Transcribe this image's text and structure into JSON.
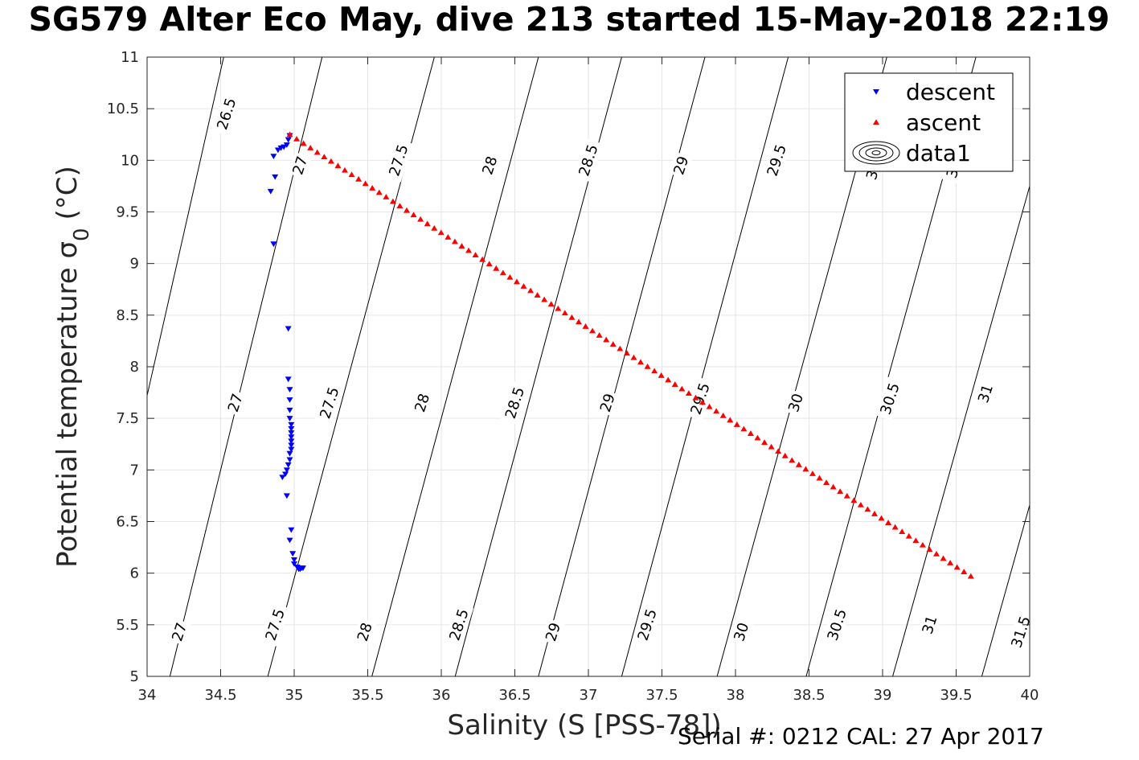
{
  "title": "SG579 Alter Eco May, dive 213 started 15-May-2018 22:19",
  "footer": "Serial #: 0212  CAL: 27 Apr 2017",
  "chart_data": {
    "type": "scatter",
    "xlabel": "Salinity (S [PSS-78])",
    "ylabel": "Potential temperature σ",
    "ylabel_subscript": "0",
    "ylabel_unit": "(°C)",
    "xlim": [
      34,
      40
    ],
    "ylim": [
      5,
      11
    ],
    "xticks": [
      "34",
      "34.5",
      "35",
      "35.5",
      "36",
      "36.5",
      "37",
      "37.5",
      "38",
      "38.5",
      "39",
      "39.5",
      "40"
    ],
    "yticks": [
      "5",
      "5.5",
      "6",
      "6.5",
      "7",
      "7.5",
      "8",
      "8.5",
      "9",
      "9.5",
      "10",
      "10.5",
      "11"
    ],
    "grid": true,
    "legend_position": "top-right",
    "series": [
      {
        "name": "descent",
        "color": "#0000ff",
        "marker": "triangle-down",
        "points": [
          [
            34.97,
            10.24
          ],
          [
            34.96,
            10.2
          ],
          [
            34.95,
            10.15
          ],
          [
            34.93,
            10.13
          ],
          [
            34.91,
            10.12
          ],
          [
            34.89,
            10.1
          ],
          [
            34.86,
            10.04
          ],
          [
            34.87,
            9.84
          ],
          [
            34.84,
            9.7
          ],
          [
            34.86,
            9.19
          ],
          [
            34.96,
            8.37
          ],
          [
            34.96,
            7.88
          ],
          [
            34.97,
            7.78
          ],
          [
            34.97,
            7.68
          ],
          [
            34.97,
            7.58
          ],
          [
            34.97,
            7.5
          ],
          [
            34.98,
            7.44
          ],
          [
            34.98,
            7.4
          ],
          [
            34.98,
            7.36
          ],
          [
            34.98,
            7.32
          ],
          [
            34.98,
            7.28
          ],
          [
            34.98,
            7.24
          ],
          [
            34.98,
            7.2
          ],
          [
            34.97,
            7.16
          ],
          [
            34.97,
            7.1
          ],
          [
            34.96,
            7.05
          ],
          [
            34.95,
            7.0
          ],
          [
            34.94,
            6.96
          ],
          [
            34.92,
            6.93
          ],
          [
            34.95,
            6.75
          ],
          [
            34.98,
            6.42
          ],
          [
            34.97,
            6.32
          ],
          [
            34.99,
            6.19
          ],
          [
            35.0,
            6.13
          ],
          [
            35.0,
            6.09
          ],
          [
            35.02,
            6.06
          ],
          [
            35.03,
            6.04
          ],
          [
            35.04,
            6.04
          ],
          [
            35.05,
            6.05
          ],
          [
            35.06,
            6.05
          ]
        ]
      },
      {
        "name": "ascent",
        "color": "#ff0000",
        "marker": "triangle-up",
        "start": [
          34.97,
          10.25
        ],
        "end": [
          39.6,
          5.97
        ],
        "count": 100
      }
    ],
    "legend_entries": [
      "descent",
      "ascent",
      "data1"
    ],
    "contours": [
      {
        "value": "26.5",
        "S0": 34.0,
        "T0": 7.72,
        "slope": 6.3
      },
      {
        "value": "27",
        "S0": 34.0,
        "T0": 4.1,
        "slope": 5.8
      },
      {
        "value": "27.5",
        "S0": 34.0,
        "T0": 0.65,
        "slope": 5.3
      },
      {
        "value": "28",
        "S0": 35.0,
        "T0": 2.2,
        "slope": 5.3
      },
      {
        "value": "28.5",
        "S0": 36.0,
        "T0": 4.5,
        "slope": 5.3
      },
      {
        "value": "29",
        "S0": 37.0,
        "T0": 6.8,
        "slope": 5.3
      },
      {
        "value": "29.5",
        "S0": 38.0,
        "T0": 9.1,
        "slope": 5.3
      },
      {
        "value": "30",
        "S0": 38.0,
        "T0": 5.65,
        "slope": 5.2
      },
      {
        "value": "30.5",
        "S0": 39.0,
        "T0": 7.7,
        "slope": 5.2
      },
      {
        "value": "31",
        "S0": 39.0,
        "T0": 4.65,
        "slope": 5.1
      },
      {
        "value": "31.5",
        "S0": 40.0,
        "T0": 6.66,
        "slope": 5.1
      }
    ],
    "contour_labels": [
      {
        "text": "26.5",
        "s": 34.54,
        "t": 10.45
      },
      {
        "text": "27",
        "s": 35.04,
        "t": 9.95
      },
      {
        "text": "27.5",
        "s": 35.71,
        "t": 10.0
      },
      {
        "text": "28",
        "s": 36.33,
        "t": 9.95
      },
      {
        "text": "28.5",
        "s": 37.0,
        "t": 10.0
      },
      {
        "text": "29",
        "s": 37.63,
        "t": 9.95
      },
      {
        "text": "29.5",
        "s": 38.28,
        "t": 10.0
      },
      {
        "text": "30",
        "s": 38.94,
        "t": 9.9
      },
      {
        "text": "30.5",
        "s": 39.5,
        "t": 9.98
      },
      {
        "text": "27",
        "s": 34.6,
        "t": 7.65
      },
      {
        "text": "27.5",
        "s": 35.24,
        "t": 7.65
      },
      {
        "text": "28",
        "s": 35.87,
        "t": 7.65
      },
      {
        "text": "28.5",
        "s": 36.5,
        "t": 7.65
      },
      {
        "text": "29",
        "s": 37.13,
        "t": 7.65
      },
      {
        "text": "29.5",
        "s": 37.76,
        "t": 7.69
      },
      {
        "text": "30",
        "s": 38.41,
        "t": 7.65
      },
      {
        "text": "30.5",
        "s": 39.05,
        "t": 7.69
      },
      {
        "text": "31",
        "s": 39.7,
        "t": 7.74
      },
      {
        "text": "27",
        "s": 34.22,
        "t": 5.43
      },
      {
        "text": "27.5",
        "s": 34.87,
        "t": 5.5
      },
      {
        "text": "28",
        "s": 35.48,
        "t": 5.43
      },
      {
        "text": "28.5",
        "s": 36.12,
        "t": 5.5
      },
      {
        "text": "29",
        "s": 36.76,
        "t": 5.43
      },
      {
        "text": "29.5",
        "s": 37.4,
        "t": 5.5
      },
      {
        "text": "30",
        "s": 38.04,
        "t": 5.43
      },
      {
        "text": "30.5",
        "s": 38.69,
        "t": 5.5
      },
      {
        "text": "31",
        "s": 39.32,
        "t": 5.5
      },
      {
        "text": "31.5",
        "s": 39.94,
        "t": 5.43
      }
    ]
  }
}
